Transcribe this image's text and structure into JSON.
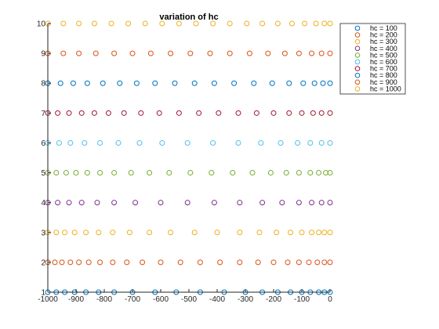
{
  "chart_data": {
    "type": "scatter",
    "title": "variation of hc",
    "xlabel": "",
    "ylabel": "",
    "xlim": [
      -1000,
      0
    ],
    "ylim": [
      1,
      10
    ],
    "xticks": [
      -1000,
      -900,
      -800,
      -700,
      -600,
      -500,
      -400,
      -300,
      -200,
      -100,
      0
    ],
    "yticks": [
      1,
      2,
      3,
      4,
      5,
      6,
      7,
      8,
      9,
      10
    ],
    "xtick_labels": [
      "-1000",
      "-900",
      "-800",
      "-700",
      "-600",
      "-500",
      "-400",
      "-300",
      "-200",
      "-100",
      "0"
    ],
    "ytick_labels": [
      "1",
      "2",
      "3",
      "4",
      "5",
      "6",
      "7",
      "8",
      "9",
      "10"
    ],
    "grid": false,
    "legend_location": "top-right",
    "marker": "open-circle",
    "series": [
      {
        "name": "hc = 100",
        "color": "#0072BD",
        "y": 1,
        "x": [
          -1000,
          -970,
          -940,
          -905,
          -865,
          -820,
          -765,
          -700,
          -620,
          -545,
          -460,
          -375,
          -300,
          -240,
          -185,
          -140,
          -100,
          -70,
          -40,
          -20,
          0
        ]
      },
      {
        "name": "hc = 200",
        "color": "#D95319",
        "y": 2,
        "x": [
          -1000,
          -975,
          -950,
          -920,
          -890,
          -855,
          -815,
          -770,
          -720,
          -665,
          -600,
          -530,
          -460,
          -390,
          -320,
          -255,
          -200,
          -150,
          -110,
          -75,
          -45,
          -20,
          0
        ]
      },
      {
        "name": "hc = 300",
        "color": "#EDB120",
        "y": 3,
        "x": [
          -1000,
          -970,
          -940,
          -905,
          -865,
          -820,
          -770,
          -710,
          -640,
          -565,
          -480,
          -400,
          -320,
          -250,
          -190,
          -140,
          -100,
          -65,
          -40,
          -20,
          0
        ]
      },
      {
        "name": "hc = 400",
        "color": "#7E2F8E",
        "y": 4,
        "x": [
          -1000,
          -965,
          -925,
          -880,
          -825,
          -765,
          -690,
          -600,
          -505,
          -410,
          -320,
          -240,
          -170,
          -110,
          -65,
          -30,
          0
        ]
      },
      {
        "name": "hc = 500",
        "color": "#77AC30",
        "y": 5,
        "x": [
          -1000,
          -970,
          -935,
          -900,
          -860,
          -815,
          -765,
          -705,
          -640,
          -570,
          -495,
          -420,
          -345,
          -275,
          -210,
          -155,
          -110,
          -70,
          -40,
          -15,
          0
        ]
      },
      {
        "name": "hc = 600",
        "color": "#4DBEEE",
        "y": 6,
        "x": [
          -1000,
          -960,
          -920,
          -870,
          -815,
          -750,
          -675,
          -595,
          -505,
          -415,
          -325,
          -245,
          -175,
          -115,
          -70,
          -30,
          0
        ]
      },
      {
        "name": "hc = 800",
        "color": "#0072BD",
        "y": 8,
        "x": [
          -1000,
          -955,
          -910,
          -860,
          -805,
          -745,
          -685,
          -620,
          -550,
          -480,
          -410,
          -340,
          -270,
          -205,
          -145,
          -95,
          -55,
          -25,
          0
        ]
      },
      {
        "name": "hc = 700",
        "color": "#A2142F",
        "y": 7,
        "x": [
          -1000,
          -965,
          -925,
          -880,
          -835,
          -785,
          -730,
          -670,
          -605,
          -535,
          -465,
          -395,
          -325,
          -260,
          -200,
          -145,
          -100,
          -60,
          -30,
          0
        ]
      },
      {
        "name": "hc = 900",
        "color": "#D95319",
        "y": 9,
        "x": [
          -1000,
          -945,
          -890,
          -830,
          -765,
          -700,
          -635,
          -565,
          -495,
          -425,
          -355,
          -285,
          -220,
          -160,
          -110,
          -65,
          -30,
          0
        ]
      },
      {
        "name": "hc = 1000",
        "color": "#EDB120",
        "y": 10,
        "x": [
          -1000,
          -945,
          -890,
          -835,
          -775,
          -715,
          -655,
          -595,
          -535,
          -475,
          -415,
          -355,
          -295,
          -240,
          -185,
          -135,
          -90,
          -50,
          -20,
          0
        ]
      }
    ],
    "legend_entries": [
      {
        "label": "hc = 100",
        "color": "#0072BD"
      },
      {
        "label": "hc = 200",
        "color": "#D95319"
      },
      {
        "label": "hc = 300",
        "color": "#EDB120"
      },
      {
        "label": "hc = 400",
        "color": "#7E2F8E"
      },
      {
        "label": "hc = 500",
        "color": "#77AC30"
      },
      {
        "label": "hc = 600",
        "color": "#4DBEEE"
      },
      {
        "label": "hc = 700",
        "color": "#A2142F"
      },
      {
        "label": "hc = 800",
        "color": "#0072BD"
      },
      {
        "label": "hc = 900",
        "color": "#D95319"
      },
      {
        "label": "hc = 1000",
        "color": "#EDB120"
      }
    ]
  }
}
